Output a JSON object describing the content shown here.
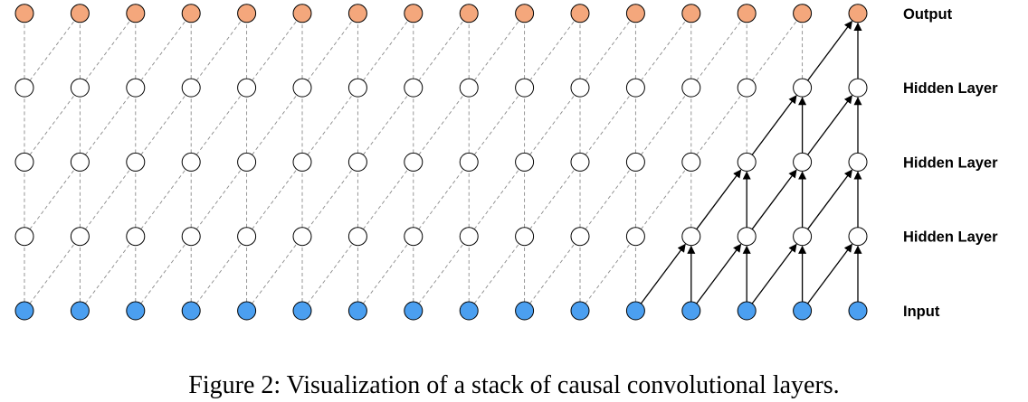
{
  "diagram": {
    "nodes_per_layer": 16,
    "layers": [
      {
        "label": "Input",
        "kind": "input"
      },
      {
        "label": "Hidden Layer",
        "kind": "hidden"
      },
      {
        "label": "Hidden Layer",
        "kind": "hidden"
      },
      {
        "label": "Hidden Layer",
        "kind": "hidden"
      },
      {
        "label": "Output",
        "kind": "output"
      }
    ],
    "colors": {
      "input_fill": "#4b9ff0",
      "hidden_fill": "#ffffff",
      "output_fill": "#f4a77c",
      "node_stroke": "#000000",
      "dashed_edge": "#8a8a8a",
      "solid_edge": "#000000"
    },
    "receptive_field_output_index": 15,
    "edge_style": "causal: each node connects to same position and previous position in the layer below"
  },
  "caption": "Figure 2: Visualization of a stack of causal convolutional layers."
}
